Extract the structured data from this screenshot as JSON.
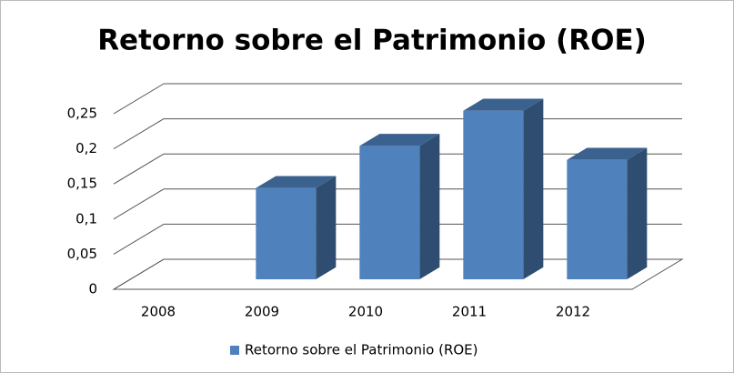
{
  "chart_data": {
    "type": "bar3d",
    "title": "Retorno sobre el Patrimonio (ROE)",
    "categories": [
      "2008",
      "2009",
      "2010",
      "2011",
      "2012"
    ],
    "series": [
      {
        "name": "Retorno sobre el Patrimonio (ROE)",
        "color": "#4f81bd",
        "values": [
          0,
          0.13,
          0.19,
          0.24,
          0.17
        ]
      }
    ],
    "ylim": [
      0,
      0.25
    ],
    "yticks": [
      0,
      {
        "value": 0.05,
        "label": "0,05"
      },
      {
        "value": 0.1,
        "label": "0,1"
      },
      {
        "value": 0.15,
        "label": "0,15"
      },
      {
        "value": 0.2,
        "label": "0,2"
      },
      {
        "value": 0.25,
        "label": "0,25"
      }
    ],
    "grid": true,
    "legend": "bottom"
  }
}
